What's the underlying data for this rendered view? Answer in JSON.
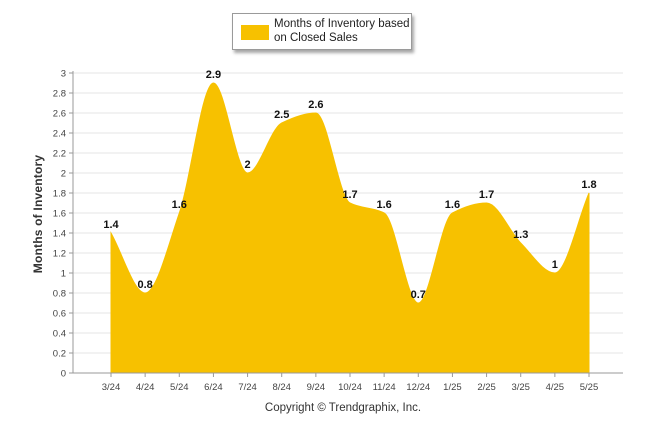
{
  "colors": {
    "series": "#F7C100",
    "grid": "#e6e6e6",
    "axis": "#999999",
    "text": "#333333"
  },
  "chart_data": {
    "type": "area",
    "categories": [
      "3/24",
      "4/24",
      "5/24",
      "6/24",
      "7/24",
      "8/24",
      "9/24",
      "10/24",
      "11/24",
      "12/24",
      "1/25",
      "2/25",
      "3/25",
      "4/25",
      "5/25"
    ],
    "series": [
      {
        "name": "Months of Inventory based on Closed Sales",
        "values": [
          1.4,
          0.8,
          1.6,
          2.9,
          2,
          2.5,
          2.6,
          1.7,
          1.6,
          0.7,
          1.6,
          1.7,
          1.3,
          1,
          1.8
        ]
      }
    ],
    "data_labels": [
      "1.4",
      "0.8",
      "1.6",
      "2.9",
      "2",
      "2.5",
      "2.6",
      "1.7",
      "1.6",
      "0.7",
      "1.6",
      "1.7",
      "1.3",
      "1",
      "1.8"
    ],
    "ylabel": "Months of Inventory",
    "xlabel": "",
    "ylim": [
      0,
      3
    ],
    "yticks": [
      0,
      0.2,
      0.4,
      0.6,
      0.8,
      1,
      1.2,
      1.4,
      1.6,
      1.8,
      2,
      2.2,
      2.4,
      2.6,
      2.8,
      3
    ],
    "ytick_labels": [
      "0",
      "0.2",
      "0.4",
      "0.6",
      "0.8",
      "1",
      "1.2",
      "1.4",
      "1.6",
      "1.8",
      "2",
      "2.2",
      "2.4",
      "2.6",
      "2.8",
      "3"
    ],
    "grid": true,
    "legend": "top-center"
  },
  "legend": {
    "label": "Months of Inventory based on Closed Sales"
  },
  "footer": {
    "copyright": "Copyright © Trendgraphix, Inc."
  }
}
